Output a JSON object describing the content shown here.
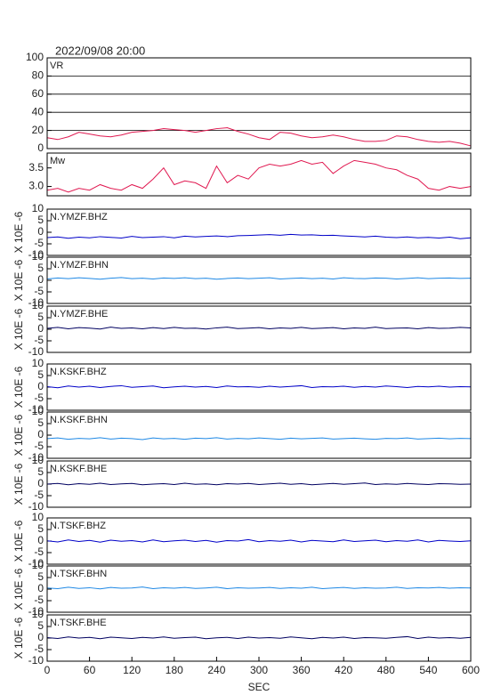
{
  "title": "2022/09/08 20:00",
  "chart_data": [
    {
      "type": "line",
      "label": "VR",
      "color": "#e01850",
      "grid": true,
      "ylim": [
        0,
        100
      ],
      "yticks": [
        0,
        20,
        40,
        60,
        80,
        100
      ],
      "xlim": [
        0,
        600
      ],
      "x": [
        0,
        15,
        30,
        45,
        60,
        75,
        90,
        105,
        120,
        135,
        150,
        165,
        180,
        195,
        210,
        225,
        240,
        255,
        270,
        285,
        300,
        315,
        330,
        345,
        360,
        375,
        390,
        405,
        420,
        435,
        450,
        465,
        480,
        495,
        510,
        525,
        540,
        555,
        570,
        585,
        600
      ],
      "values": [
        12,
        10,
        13,
        18,
        16,
        14,
        13,
        15,
        18,
        19,
        20,
        22,
        21,
        20,
        18,
        20,
        22,
        23,
        19,
        16,
        12,
        10,
        18,
        17,
        14,
        12,
        13,
        15,
        13,
        10,
        8,
        8,
        9,
        14,
        13,
        10,
        8,
        7,
        8,
        6,
        3
      ]
    },
    {
      "type": "line",
      "label": "Mw",
      "color": "#e01850",
      "grid": false,
      "ylim": [
        2.75,
        3.9
      ],
      "yticks": [
        {
          "value": 3,
          "label": "3.0"
        },
        3.5
      ],
      "xlim": [
        0,
        600
      ],
      "x": [
        0,
        15,
        30,
        45,
        60,
        75,
        90,
        105,
        120,
        135,
        150,
        165,
        180,
        195,
        210,
        225,
        240,
        255,
        270,
        285,
        300,
        315,
        330,
        345,
        360,
        375,
        390,
        405,
        420,
        435,
        450,
        465,
        480,
        495,
        510,
        525,
        540,
        555,
        570,
        585,
        600
      ],
      "values": [
        2.9,
        2.95,
        2.85,
        2.95,
        2.9,
        3.05,
        2.95,
        2.9,
        3.05,
        2.95,
        3.2,
        3.5,
        3.05,
        3.15,
        3.1,
        2.95,
        3.55,
        3.1,
        3.3,
        3.2,
        3.5,
        3.6,
        3.55,
        3.6,
        3.7,
        3.6,
        3.65,
        3.35,
        3.55,
        3.7,
        3.65,
        3.6,
        3.5,
        3.45,
        3.3,
        3.2,
        2.95,
        2.9,
        3.0,
        2.95,
        3.0
      ]
    },
    {
      "type": "line",
      "label": "N.YMZF.BHZ",
      "ylabel": "X 10E -6",
      "color": "#0000c8",
      "grid": false,
      "ylim": [
        -10,
        10
      ],
      "yticks": [
        -10,
        -5,
        0,
        5,
        10
      ],
      "xlim": [
        0,
        600
      ],
      "x": [
        0,
        15,
        30,
        45,
        60,
        75,
        90,
        105,
        120,
        135,
        150,
        165,
        180,
        195,
        210,
        225,
        240,
        255,
        270,
        285,
        300,
        315,
        330,
        345,
        360,
        375,
        390,
        405,
        420,
        435,
        450,
        465,
        480,
        495,
        510,
        525,
        540,
        555,
        570,
        585,
        600
      ],
      "values": [
        -2.3,
        -2.0,
        -2.6,
        -2.1,
        -2.4,
        -1.9,
        -2.2,
        -2.5,
        -1.8,
        -2.3,
        -2.1,
        -1.9,
        -2.4,
        -1.7,
        -2.0,
        -1.8,
        -1.6,
        -1.9,
        -1.5,
        -1.4,
        -1.2,
        -1.0,
        -1.3,
        -0.9,
        -1.2,
        -1.1,
        -1.4,
        -1.3,
        -1.6,
        -1.8,
        -2.0,
        -1.7,
        -2.1,
        -2.3,
        -2.0,
        -2.4,
        -2.2,
        -2.5,
        -2.1,
        -2.8,
        -2.4
      ]
    },
    {
      "type": "line",
      "label": "N.YMZF.BHN",
      "ylabel": "X 10E -6",
      "color": "#1e88e5",
      "grid": false,
      "ylim": [
        -10,
        10
      ],
      "yticks": [
        -10,
        -5,
        0,
        5,
        10
      ],
      "xlim": [
        0,
        600
      ],
      "x": [
        0,
        15,
        30,
        45,
        60,
        75,
        90,
        105,
        120,
        135,
        150,
        165,
        180,
        195,
        210,
        225,
        240,
        255,
        270,
        285,
        300,
        315,
        330,
        345,
        360,
        375,
        390,
        405,
        420,
        435,
        450,
        465,
        480,
        495,
        510,
        525,
        540,
        555,
        570,
        585,
        600
      ],
      "values": [
        0.6,
        1.0,
        0.7,
        1.1,
        0.8,
        0.5,
        0.9,
        1.2,
        0.7,
        0.9,
        0.6,
        1.0,
        0.8,
        1.1,
        0.7,
        0.9,
        0.5,
        0.8,
        1.0,
        0.7,
        0.9,
        1.1,
        0.6,
        0.8,
        1.0,
        0.7,
        0.9,
        0.6,
        1.1,
        0.8,
        0.7,
        1.0,
        0.9,
        0.6,
        0.8,
        1.1,
        0.7,
        0.9,
        1.0,
        0.8,
        0.9
      ]
    },
    {
      "type": "line",
      "label": "N.YMZF.BHE",
      "ylabel": "X 10E -6",
      "color": "#000060",
      "grid": false,
      "ylim": [
        -10,
        10
      ],
      "yticks": [
        -10,
        -5,
        0,
        5,
        10
      ],
      "xlim": [
        0,
        600
      ],
      "x": [
        0,
        15,
        30,
        45,
        60,
        75,
        90,
        105,
        120,
        135,
        150,
        165,
        180,
        195,
        210,
        225,
        240,
        255,
        270,
        285,
        300,
        315,
        330,
        345,
        360,
        375,
        390,
        405,
        420,
        435,
        450,
        465,
        480,
        495,
        510,
        525,
        540,
        555,
        570,
        585,
        600
      ],
      "values": [
        0.4,
        0.8,
        0.2,
        0.7,
        0.5,
        0.1,
        0.9,
        0.4,
        0.6,
        0.2,
        0.7,
        0.3,
        0.8,
        0.4,
        0.5,
        0.1,
        0.6,
        0.9,
        0.3,
        0.5,
        0.7,
        0.2,
        0.6,
        0.4,
        0.8,
        0.3,
        0.5,
        0.7,
        0.2,
        0.6,
        0.4,
        0.9,
        0.3,
        0.5,
        0.6,
        0.2,
        0.7,
        0.4,
        0.5,
        0.8,
        0.6
      ]
    },
    {
      "type": "line",
      "label": "N.KSKF.BHZ",
      "ylabel": "X 10E -6",
      "color": "#0000c8",
      "grid": false,
      "ylim": [
        -10,
        10
      ],
      "yticks": [
        -10,
        -5,
        0,
        5,
        10
      ],
      "xlim": [
        0,
        600
      ],
      "x": [
        0,
        15,
        30,
        45,
        60,
        75,
        90,
        105,
        120,
        135,
        150,
        165,
        180,
        195,
        210,
        225,
        240,
        255,
        270,
        285,
        300,
        315,
        330,
        345,
        360,
        375,
        390,
        405,
        420,
        435,
        450,
        465,
        480,
        495,
        510,
        525,
        540,
        555,
        570,
        585,
        600
      ],
      "values": [
        0.2,
        -0.3,
        0.5,
        0.0,
        0.4,
        -0.2,
        0.3,
        0.6,
        -0.1,
        0.2,
        0.5,
        -0.3,
        0.1,
        0.4,
        0.0,
        0.3,
        -0.2,
        0.5,
        0.1,
        0.2,
        -0.1,
        0.4,
        0.0,
        0.3,
        0.6,
        -0.2,
        0.2,
        0.1,
        0.4,
        -0.1,
        0.3,
        0.0,
        0.5,
        0.2,
        -0.2,
        0.3,
        0.1,
        0.4,
        0.0,
        0.2,
        0.1
      ]
    },
    {
      "type": "line",
      "label": "N.KSKF.BHN",
      "ylabel": "X 10E -6",
      "color": "#1e88e5",
      "grid": false,
      "ylim": [
        -10,
        10
      ],
      "yticks": [
        -10,
        -5,
        0,
        5,
        10
      ],
      "xlim": [
        0,
        600
      ],
      "x": [
        0,
        15,
        30,
        45,
        60,
        75,
        90,
        105,
        120,
        135,
        150,
        165,
        180,
        195,
        210,
        225,
        240,
        255,
        270,
        285,
        300,
        315,
        330,
        345,
        360,
        375,
        390,
        405,
        420,
        435,
        450,
        465,
        480,
        495,
        510,
        525,
        540,
        555,
        570,
        585,
        600
      ],
      "values": [
        -1.5,
        -1.2,
        -1.8,
        -1.4,
        -1.6,
        -1.1,
        -1.7,
        -1.3,
        -1.5,
        -1.9,
        -1.2,
        -1.6,
        -1.4,
        -1.8,
        -1.3,
        -1.5,
        -1.1,
        -1.7,
        -1.4,
        -1.6,
        -1.2,
        -1.5,
        -1.8,
        -1.3,
        -1.6,
        -1.4,
        -1.2,
        -1.7,
        -1.5,
        -1.3,
        -1.6,
        -1.8,
        -1.4,
        -1.5,
        -1.2,
        -1.7,
        -1.5,
        -1.3,
        -1.6,
        -1.4,
        -1.5
      ]
    },
    {
      "type": "line",
      "label": "N.KSKF.BHE",
      "ylabel": "X 10E -6",
      "color": "#000060",
      "grid": false,
      "ylim": [
        -10,
        10
      ],
      "yticks": [
        -10,
        -5,
        0,
        5,
        10
      ],
      "xlim": [
        0,
        600
      ],
      "x": [
        0,
        15,
        30,
        45,
        60,
        75,
        90,
        105,
        120,
        135,
        150,
        165,
        180,
        195,
        210,
        225,
        240,
        255,
        270,
        285,
        300,
        315,
        330,
        345,
        360,
        375,
        390,
        405,
        420,
        435,
        450,
        465,
        480,
        495,
        510,
        525,
        540,
        555,
        570,
        585,
        600
      ],
      "values": [
        0.0,
        0.3,
        -0.3,
        0.2,
        -0.1,
        0.4,
        -0.2,
        0.1,
        0.3,
        -0.3,
        0.0,
        0.2,
        -0.2,
        0.4,
        -0.1,
        0.1,
        -0.3,
        0.2,
        0.0,
        0.3,
        -0.2,
        0.1,
        0.4,
        -0.1,
        0.2,
        -0.3,
        0.0,
        0.3,
        -0.1,
        0.2,
        0.5,
        -0.2,
        0.1,
        -0.1,
        0.3,
        0.0,
        -0.2,
        0.2,
        0.1,
        -0.1,
        0.0
      ]
    },
    {
      "type": "line",
      "label": "N.TSKF.BHZ",
      "ylabel": "X 10E -6",
      "color": "#0000c8",
      "grid": false,
      "ylim": [
        -10,
        10
      ],
      "yticks": [
        -10,
        -5,
        0,
        5,
        10
      ],
      "xlim": [
        0,
        600
      ],
      "x": [
        0,
        15,
        30,
        45,
        60,
        75,
        90,
        105,
        120,
        135,
        150,
        165,
        180,
        195,
        210,
        225,
        240,
        255,
        270,
        285,
        300,
        315,
        330,
        345,
        360,
        375,
        390,
        405,
        420,
        435,
        450,
        465,
        480,
        495,
        510,
        525,
        540,
        555,
        570,
        585,
        600
      ],
      "values": [
        0.1,
        -0.4,
        0.5,
        -0.2,
        0.3,
        -0.5,
        0.4,
        -0.1,
        0.2,
        -0.4,
        0.5,
        -0.3,
        0.1,
        0.4,
        -0.2,
        0.3,
        -0.5,
        0.2,
        0.0,
        0.6,
        -0.3,
        0.2,
        -0.1,
        0.4,
        -0.4,
        0.3,
        0.0,
        -0.3,
        0.5,
        -0.2,
        0.1,
        0.4,
        -0.3,
        0.2,
        -0.1,
        0.5,
        -0.4,
        0.3,
        0.0,
        -0.2,
        0.1
      ]
    },
    {
      "type": "line",
      "label": "N.TSKF.BHN",
      "ylabel": "X 10E -6",
      "color": "#1e88e5",
      "grid": false,
      "ylim": [
        -10,
        10
      ],
      "yticks": [
        -10,
        -5,
        0,
        5,
        10
      ],
      "xlim": [
        0,
        600
      ],
      "x": [
        0,
        15,
        30,
        45,
        60,
        75,
        90,
        105,
        120,
        135,
        150,
        165,
        180,
        195,
        210,
        225,
        240,
        255,
        270,
        285,
        300,
        315,
        330,
        345,
        360,
        375,
        390,
        405,
        420,
        435,
        450,
        465,
        480,
        495,
        510,
        525,
        540,
        555,
        570,
        585,
        600
      ],
      "values": [
        0.5,
        0.2,
        0.8,
        0.3,
        0.6,
        0.1,
        0.7,
        0.4,
        0.5,
        0.9,
        0.2,
        0.6,
        0.4,
        0.7,
        0.3,
        0.5,
        0.8,
        0.2,
        0.6,
        0.4,
        0.5,
        0.7,
        0.3,
        0.6,
        0.4,
        0.8,
        0.2,
        0.5,
        0.7,
        0.3,
        0.6,
        0.4,
        0.5,
        0.8,
        0.3,
        0.6,
        0.5,
        0.7,
        0.4,
        0.6,
        0.5
      ]
    },
    {
      "type": "line",
      "label": "N.TSKF.BHE",
      "ylabel": "X 10E -6",
      "color": "#000060",
      "grid": false,
      "ylim": [
        -10,
        10
      ],
      "yticks": [
        -10,
        -5,
        0,
        5,
        10
      ],
      "xlim": [
        0,
        600
      ],
      "xticks": [
        0,
        60,
        120,
        180,
        240,
        300,
        360,
        420,
        480,
        540,
        600
      ],
      "xlabel": "SEC",
      "x": [
        0,
        15,
        30,
        45,
        60,
        75,
        90,
        105,
        120,
        135,
        150,
        165,
        180,
        195,
        210,
        225,
        240,
        255,
        270,
        285,
        300,
        315,
        330,
        345,
        360,
        375,
        390,
        405,
        420,
        435,
        450,
        465,
        480,
        495,
        510,
        525,
        540,
        555,
        570,
        585,
        600
      ],
      "values": [
        0.2,
        -0.2,
        0.5,
        0.0,
        0.3,
        -0.3,
        0.4,
        0.1,
        -0.2,
        0.3,
        0.0,
        0.5,
        -0.1,
        0.2,
        0.4,
        -0.3,
        0.1,
        0.3,
        -0.2,
        0.4,
        0.0,
        0.2,
        -0.1,
        0.5,
        0.1,
        -0.3,
        0.3,
        0.0,
        0.4,
        -0.2,
        0.2,
        0.1,
        -0.1,
        0.3,
        0.6,
        -0.2,
        0.4,
        0.0,
        0.2,
        -0.1,
        0.3
      ]
    }
  ]
}
